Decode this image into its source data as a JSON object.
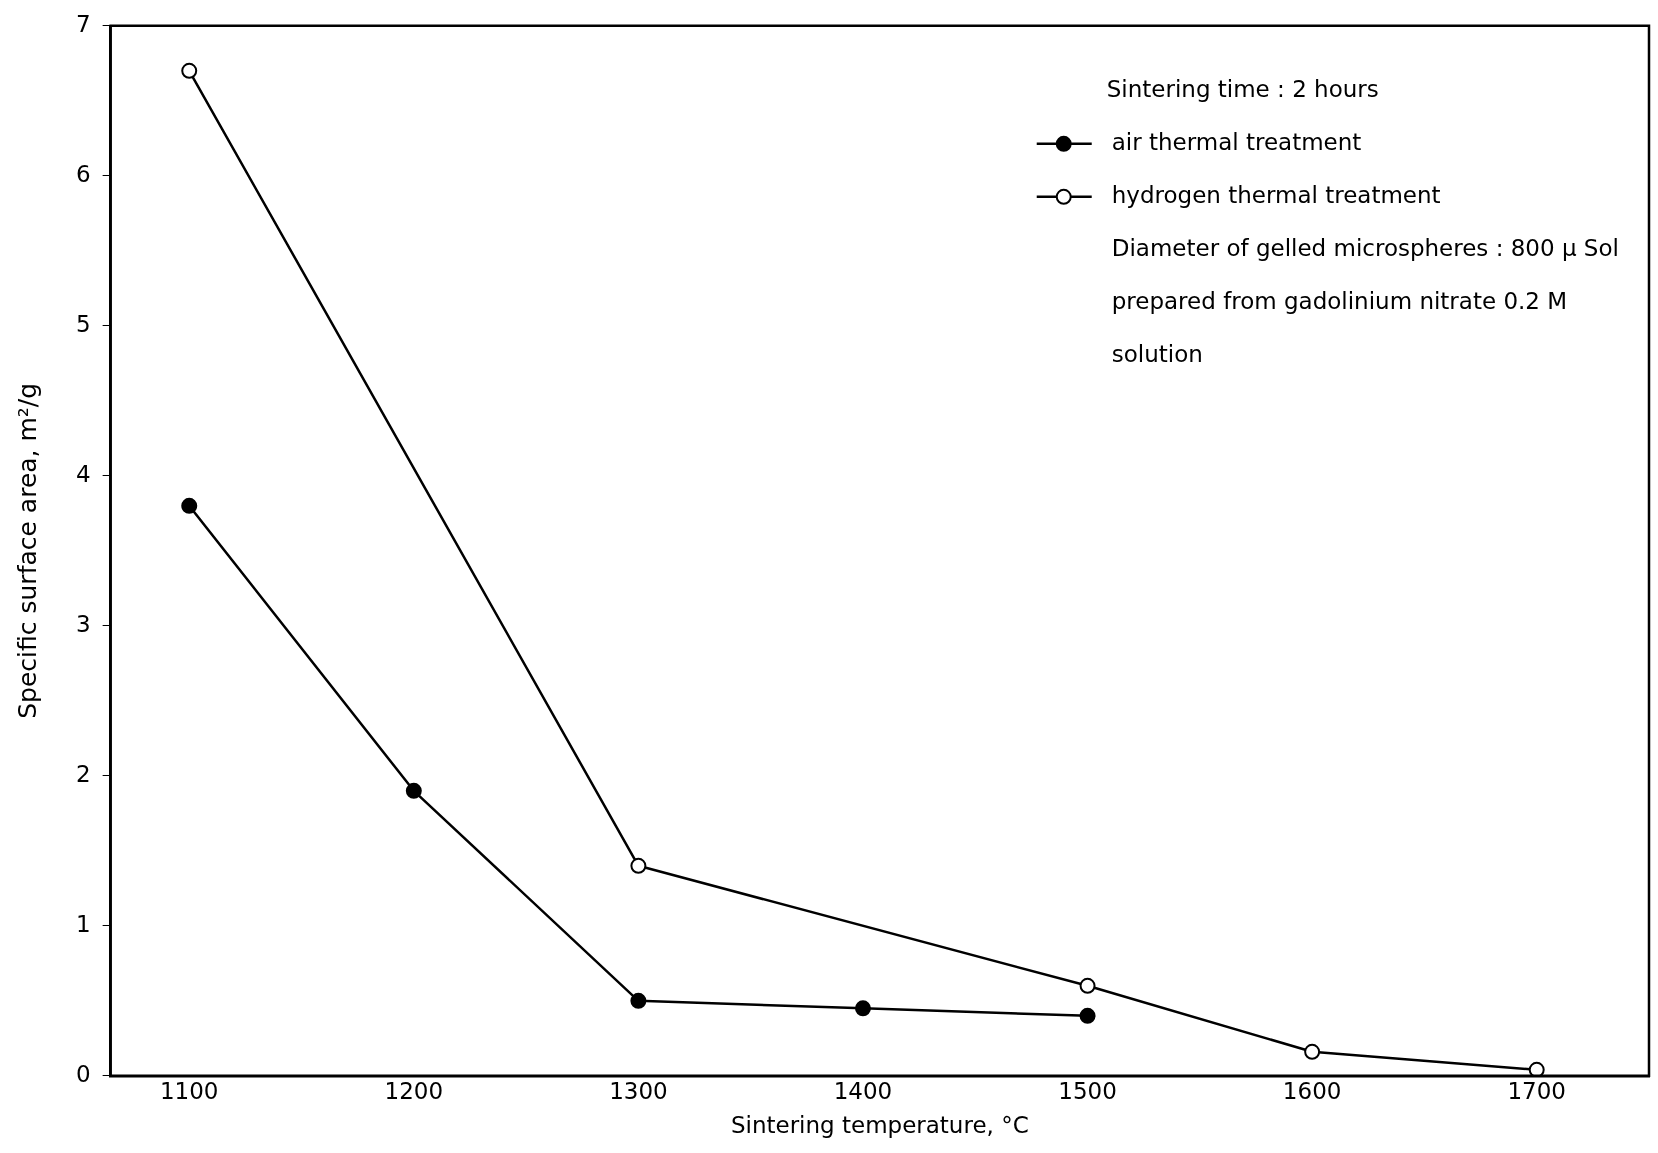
{
  "chart_data": {
    "type": "line",
    "xlabel": "Sintering temperature, °C",
    "ylabel": "Specific surface area, m²/g",
    "xlim": [
      1065,
      1750
    ],
    "xticks": [
      1100,
      1200,
      1300,
      1400,
      1500,
      1600,
      1700
    ],
    "ylim": [
      0,
      7
    ],
    "yticks": [
      0,
      1,
      2,
      3,
      4,
      5,
      6,
      7
    ],
    "grid": false,
    "legend": "top right",
    "marker": "circle",
    "line_style": "solid",
    "annotations": [
      "Sintering time : 2 hours",
      "Diameter of gelled microspheres : 800 μ Sol prepared from gadolinium nitrate 0.2 M solution"
    ],
    "series": [
      {
        "name": "air thermal treatment",
        "color": "#000000",
        "x": [
          1100,
          1200,
          1300,
          1400,
          1500
        ],
        "values": [
          3.8,
          1.9,
          0.5,
          0.45,
          0.4
        ]
      },
      {
        "name": "hydrogen thermal treatment",
        "color": "#000000",
        "x": [
          1100,
          1300,
          1500,
          1600,
          1700
        ],
        "values": [
          6.7,
          1.4,
          0.6,
          0.16,
          0.04
        ]
      }
    ]
  }
}
